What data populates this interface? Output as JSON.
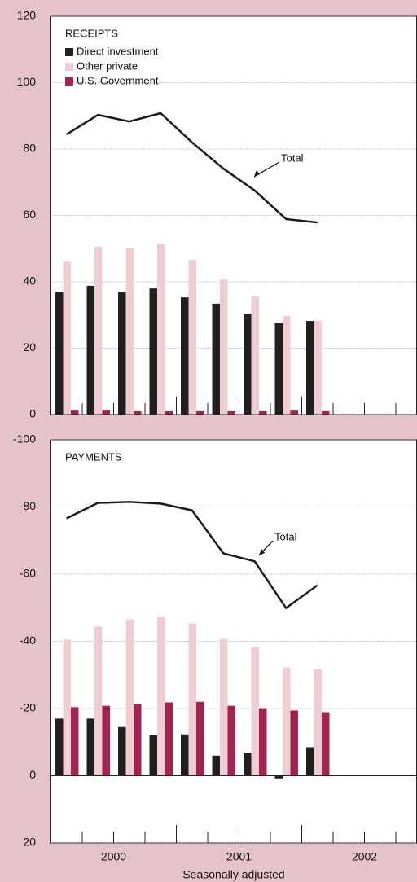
{
  "chart_data": [
    {
      "type": "bar",
      "title": "RECEIPTS",
      "legend": true,
      "legend_corner": "top-left",
      "grid": true,
      "y_inverted": false,
      "categories": [
        null,
        null,
        null,
        null,
        null,
        null,
        null,
        null,
        null,
        null,
        null,
        null
      ],
      "ylim": [
        0,
        120
      ],
      "yticks": [
        0,
        20,
        40,
        60,
        80,
        100,
        120
      ],
      "series": [
        {
          "name": "Direct investment",
          "color": "#231f20",
          "values": [
            36.8,
            38.8,
            36.8,
            38,
            35.3,
            33.4,
            30.4,
            27.7,
            28.2,
            null,
            null,
            null
          ]
        },
        {
          "name": "Other private",
          "color": "#f0cdd1",
          "values": [
            46.1,
            50.6,
            50.3,
            51.5,
            46.6,
            40.7,
            35.6,
            29.7,
            28.2,
            null,
            null,
            null
          ]
        },
        {
          "name": "U.S. Government",
          "color": "#a3234f",
          "values": [
            1.2,
            1.2,
            1,
            1,
            1,
            1,
            1,
            1.2,
            1,
            null,
            null,
            null
          ]
        }
      ],
      "line": {
        "name": "Total",
        "color": "#1a1a1a",
        "values": [
          84.4,
          90.3,
          88.3,
          90.8,
          82,
          74.1,
          67.5,
          58.9,
          57.9,
          null,
          null,
          null
        ]
      }
    },
    {
      "type": "bar",
      "title": "PAYMENTS",
      "legend": false,
      "grid": true,
      "y_inverted": true,
      "categories": [
        null,
        null,
        null,
        null,
        null,
        null,
        null,
        null,
        null,
        null,
        null,
        null
      ],
      "x_group_labels": [
        "2000",
        "2001",
        "2002"
      ],
      "xlabel": "Seasonally adjusted",
      "ylim": [
        -100,
        20
      ],
      "yticks": [
        -100,
        -80,
        -60,
        -40,
        -20,
        0,
        20
      ],
      "series": [
        {
          "name": "Direct investment",
          "color": "#231f20",
          "values": [
            -17,
            -17,
            -14.5,
            -12,
            -12.3,
            -6,
            -6.8,
            0.8,
            -8.5,
            null,
            null,
            null
          ]
        },
        {
          "name": "Other private",
          "color": "#f0cdd1",
          "values": [
            -40.5,
            -44.4,
            -46.5,
            -47.3,
            -45.3,
            -40.7,
            -38.3,
            -32.2,
            -31.8,
            null,
            null,
            null
          ]
        },
        {
          "name": "U.S. Government",
          "color": "#a3234f",
          "values": [
            -20.4,
            -20.8,
            -21.3,
            -21.8,
            -22,
            -20.8,
            -20.1,
            -19.4,
            -18.9,
            null,
            null,
            null
          ]
        }
      ],
      "line": {
        "name": "Total",
        "color": "#1a1a1a",
        "values": [
          -76.6,
          -81.2,
          -81.5,
          -81,
          -79,
          -66.2,
          -63.8,
          -49.9,
          -56.7,
          null,
          null,
          null
        ]
      }
    }
  ]
}
